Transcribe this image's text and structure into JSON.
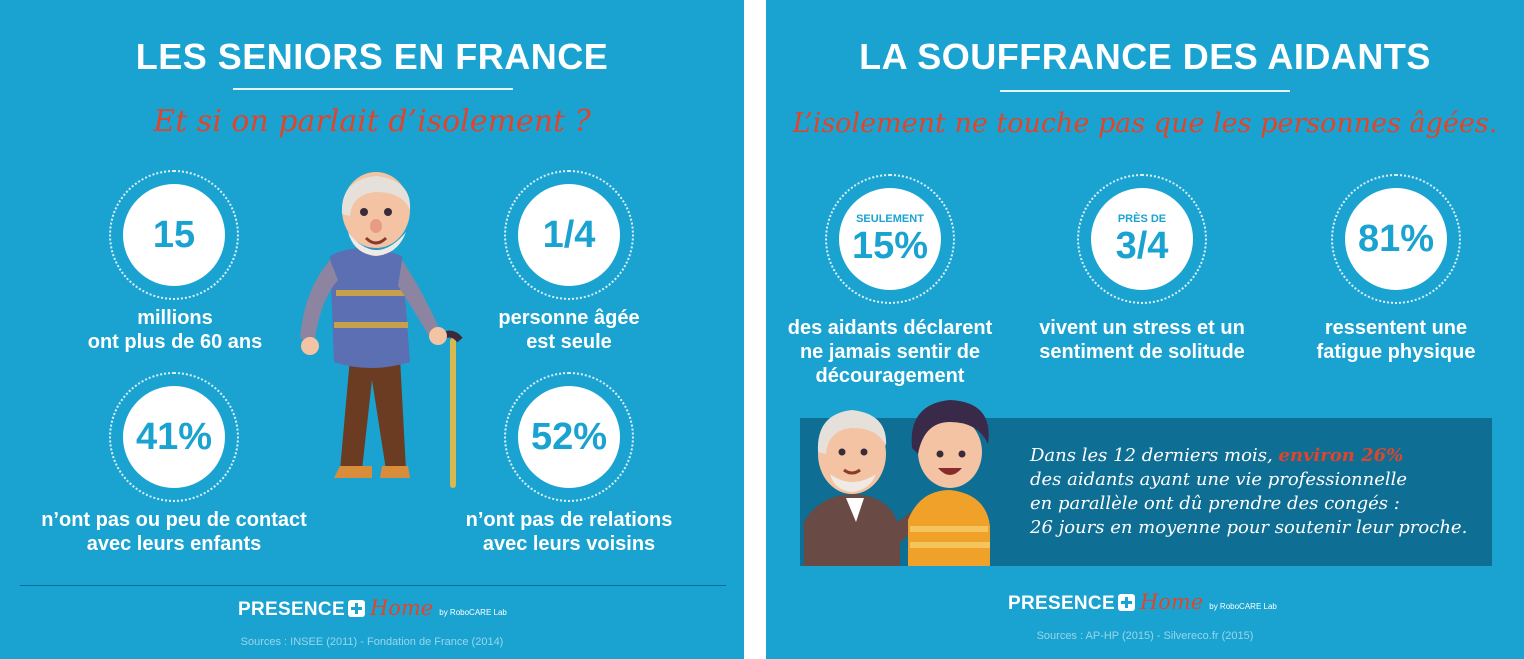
{
  "left": {
    "title": "LES SENIORS EN FRANCE",
    "subtitle": "Et si on parlait d’isolement ?",
    "stats": [
      {
        "value": "15",
        "caption": [
          "millions",
          "ont plus de 60 ans"
        ]
      },
      {
        "value": "1/4",
        "caption": [
          "personne âgée",
          "est seule"
        ]
      },
      {
        "value": "41%",
        "caption": [
          "n’ont pas ou peu de contact",
          "avec leurs enfants"
        ]
      },
      {
        "value": "52%",
        "caption": [
          "n’ont pas de relations",
          "avec leurs voisins"
        ]
      }
    ],
    "logo": {
      "brand": "PRESENCE",
      "home": "Home",
      "by": "by RoboCARE Lab"
    },
    "sources": "Sources : INSEE (2011) - Fondation de France (2014)"
  },
  "right": {
    "title": "LA SOUFFRANCE DES AIDANTS",
    "subtitle": "L’isolement ne touche pas que les personnes âgées.",
    "stats": [
      {
        "prefix": "SEULEMENT",
        "value": "15%",
        "caption": [
          "des aidants déclarent",
          "ne jamais sentir de",
          "découragement"
        ]
      },
      {
        "prefix": "PRÈS DE",
        "value": "3/4",
        "caption": [
          "vivent un stress et un",
          "sentiment de solitude"
        ]
      },
      {
        "prefix": "",
        "value": "81%",
        "caption": [
          "ressentent une",
          "fatigue physique"
        ]
      }
    ],
    "quote": {
      "line1_before": "Dans les 12 derniers mois,",
      "line1_highlight": "environ 26%",
      "line2": "des aidants ayant une vie professionnelle",
      "line3": "en parallèle ont dû prendre des congés :",
      "line4": "26 jours en moyenne pour soutenir leur proche."
    },
    "logo": {
      "brand": "PRESENCE",
      "home": "Home",
      "by": "by RoboCARE Lab"
    },
    "sources": "Sources : AP-HP (2015) - Silvereco.fr (2015)"
  },
  "colors": {
    "background": "#1aa3d1",
    "accent": "#e0452c",
    "banner": "#0e6e94",
    "white": "#ffffff"
  }
}
